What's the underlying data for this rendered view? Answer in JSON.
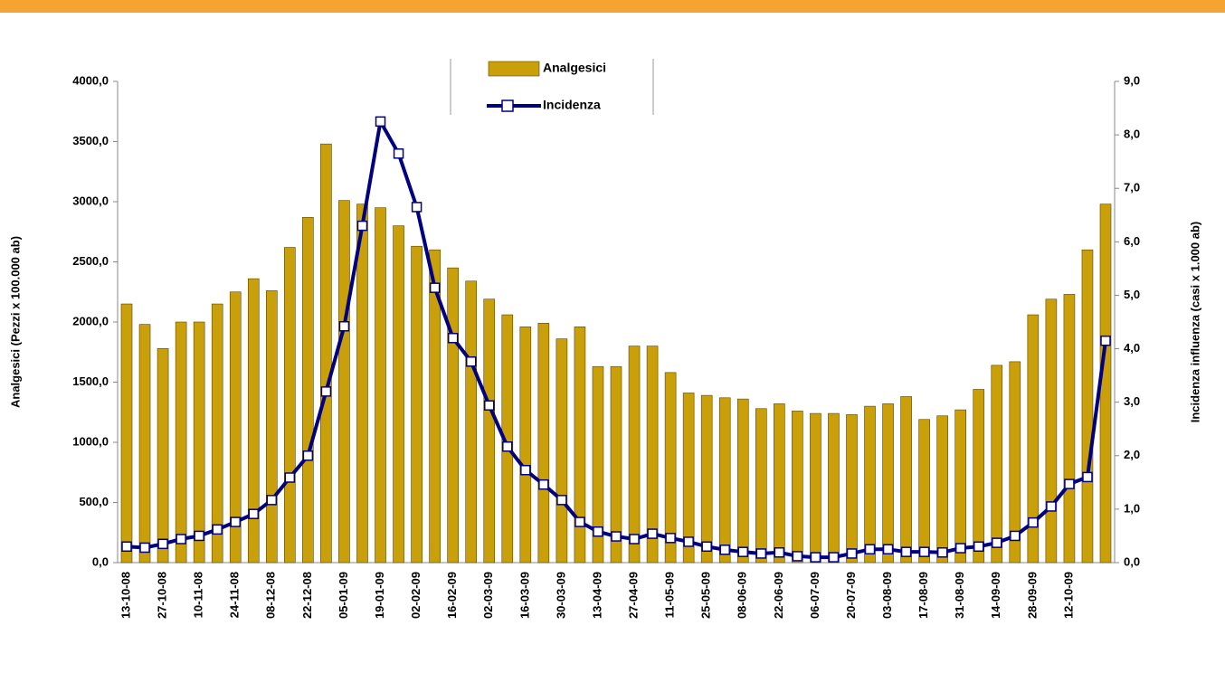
{
  "chart_data": {
    "type": "bar-line",
    "categories": [
      "13-10-08",
      null,
      "27-10-08",
      null,
      "10-11-08",
      null,
      "24-11-08",
      null,
      "08-12-08",
      null,
      "22-12-08",
      null,
      "05-01-09",
      null,
      "19-01-09",
      null,
      "02-02-09",
      null,
      "16-02-09",
      null,
      "02-03-09",
      null,
      "16-03-09",
      null,
      "30-03-09",
      null,
      "13-04-09",
      null,
      "27-04-09",
      null,
      "11-05-09",
      null,
      "25-05-09",
      null,
      "08-06-09",
      null,
      "22-06-09",
      null,
      "06-07-09",
      null,
      "20-07-09",
      null,
      "03-08-09",
      null,
      "17-08-09",
      null,
      "31-08-09",
      null,
      "14-09-09",
      null,
      "28-09-09",
      null,
      "12-10-09",
      null,
      null
    ],
    "series": [
      {
        "name": "Analgesici",
        "type": "bar",
        "color": "#c9a00a",
        "values": [
          2150,
          1980,
          1780,
          2000,
          2000,
          2150,
          2250,
          2360,
          2260,
          2620,
          2870,
          3480,
          3010,
          2980,
          2950,
          2800,
          2630,
          2600,
          2450,
          2340,
          2190,
          2060,
          1960,
          1990,
          1860,
          1960,
          1630,
          1630,
          1800,
          1800,
          1580,
          1410,
          1390,
          1370,
          1360,
          1280,
          1320,
          1260,
          1240,
          1240,
          1230,
          1300,
          1320,
          1380,
          1190,
          1220,
          1270,
          1440,
          1640,
          1670,
          2060,
          2190,
          2230,
          2600,
          2980
        ]
      },
      {
        "name": "Incidenza",
        "type": "line",
        "axis": "y2",
        "color": "#000080",
        "values": [
          0.3,
          0.28,
          0.35,
          0.44,
          0.5,
          0.62,
          0.76,
          0.91,
          1.17,
          1.59,
          2.0,
          3.2,
          4.42,
          6.3,
          8.25,
          7.65,
          6.65,
          5.14,
          4.2,
          3.76,
          2.94,
          2.17,
          1.73,
          1.46,
          1.17,
          0.76,
          0.58,
          0.49,
          0.44,
          0.54,
          0.46,
          0.39,
          0.3,
          0.24,
          0.2,
          0.17,
          0.19,
          0.12,
          0.1,
          0.1,
          0.17,
          0.25,
          0.25,
          0.2,
          0.2,
          0.19,
          0.27,
          0.3,
          0.37,
          0.5,
          0.75,
          1.05,
          1.47,
          1.6,
          4.15
        ]
      }
    ],
    "ylabel": "Analgesici (Pezzi x 100.000 ab)",
    "y2label": "Incidenza influenza (casi x 1.000 ab)",
    "ylim": [
      0,
      4000
    ],
    "yticks": [
      {
        "value": 0,
        "label": "0,0"
      },
      {
        "value": 500,
        "label": "500,0"
      },
      {
        "value": 1000,
        "label": "1000,0"
      },
      {
        "value": 1500,
        "label": "1500,0"
      },
      {
        "value": 2000,
        "label": "2000,0"
      },
      {
        "value": 2500,
        "label": "2500,0"
      },
      {
        "value": 3000,
        "label": "3000,0"
      },
      {
        "value": 3500,
        "label": "3500,0"
      },
      {
        "value": 4000,
        "label": "4000,0"
      }
    ],
    "y2lim": [
      0,
      9
    ],
    "y2ticks": [
      {
        "value": 0,
        "label": "0,0"
      },
      {
        "value": 1,
        "label": "1,0"
      },
      {
        "value": 2,
        "label": "2,0"
      },
      {
        "value": 3,
        "label": "3,0"
      },
      {
        "value": 4,
        "label": "4,0"
      },
      {
        "value": 5,
        "label": "5,0"
      },
      {
        "value": 6,
        "label": "6,0"
      },
      {
        "value": 7,
        "label": "7,0"
      },
      {
        "value": 8,
        "label": "8,0"
      },
      {
        "value": 9,
        "label": "9,0"
      }
    ],
    "legend": "top"
  }
}
